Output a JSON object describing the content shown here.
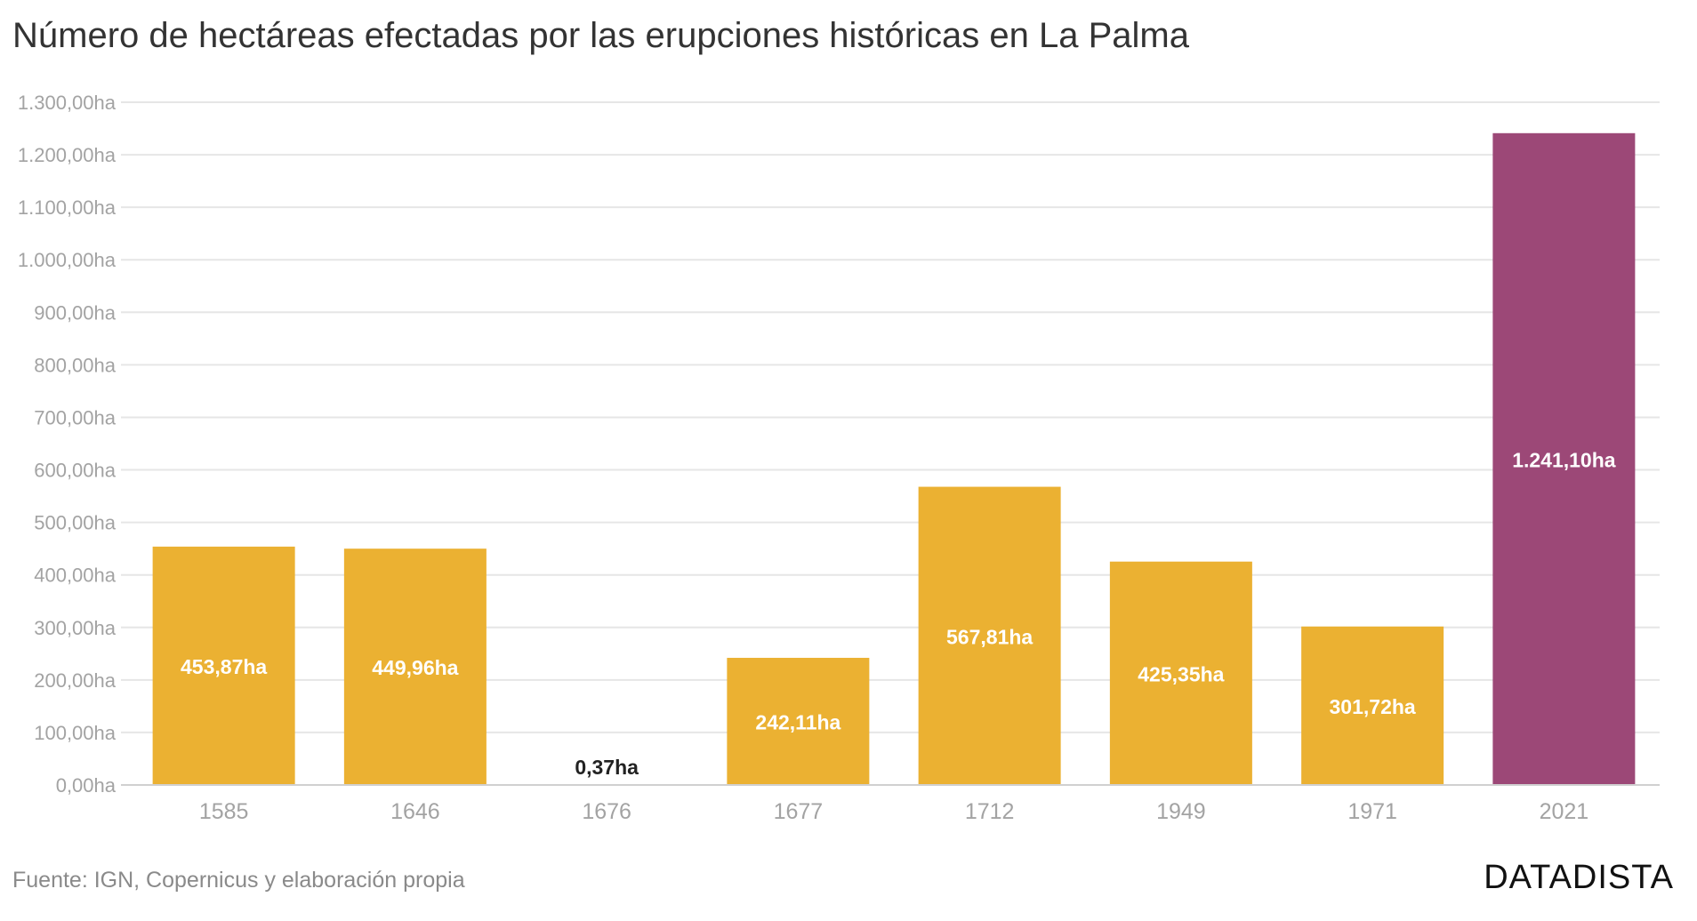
{
  "chart_data": {
    "type": "bar",
    "title": "Número de hectáreas efectadas por las erupciones históricas en La Palma",
    "xlabel": "",
    "ylabel": "",
    "categories": [
      "1585",
      "1646",
      "1676",
      "1677",
      "1712",
      "1949",
      "1971",
      "2021"
    ],
    "values": [
      453.87,
      449.96,
      0.37,
      242.11,
      567.81,
      425.35,
      301.72,
      1241.1
    ],
    "value_labels": [
      "453,87ha",
      "449,96ha",
      "0,37ha",
      "242,11ha",
      "567,81ha",
      "425,35ha",
      "301,72ha",
      "1.241,10ha"
    ],
    "bar_colors": [
      "#ebb132",
      "#ebb132",
      "#ebb132",
      "#ebb132",
      "#ebb132",
      "#ebb132",
      "#ebb132",
      "#9c4877"
    ],
    "ylim": [
      0,
      1300
    ],
    "y_ticks": [
      0,
      100,
      200,
      300,
      400,
      500,
      600,
      700,
      800,
      900,
      1000,
      1100,
      1200,
      1300
    ],
    "y_tick_labels": [
      "0,00ha",
      "100,00ha",
      "200,00ha",
      "300,00ha",
      "400,00ha",
      "500,00ha",
      "600,00ha",
      "700,00ha",
      "800,00ha",
      "900,00ha",
      "1.000,00ha",
      "1.100,00ha",
      "1.200,00ha",
      "1.300,00ha"
    ],
    "grid": true,
    "legend": "none"
  },
  "footer": {
    "source": "Fuente: IGN, Copernicus y elaboración propia",
    "brand": "DATADISTA"
  },
  "colors": {
    "bar_default": "#ebb132",
    "bar_highlight": "#9c4877",
    "gridline": "#e6e6e6",
    "tick_text": "#a3a3a3"
  }
}
